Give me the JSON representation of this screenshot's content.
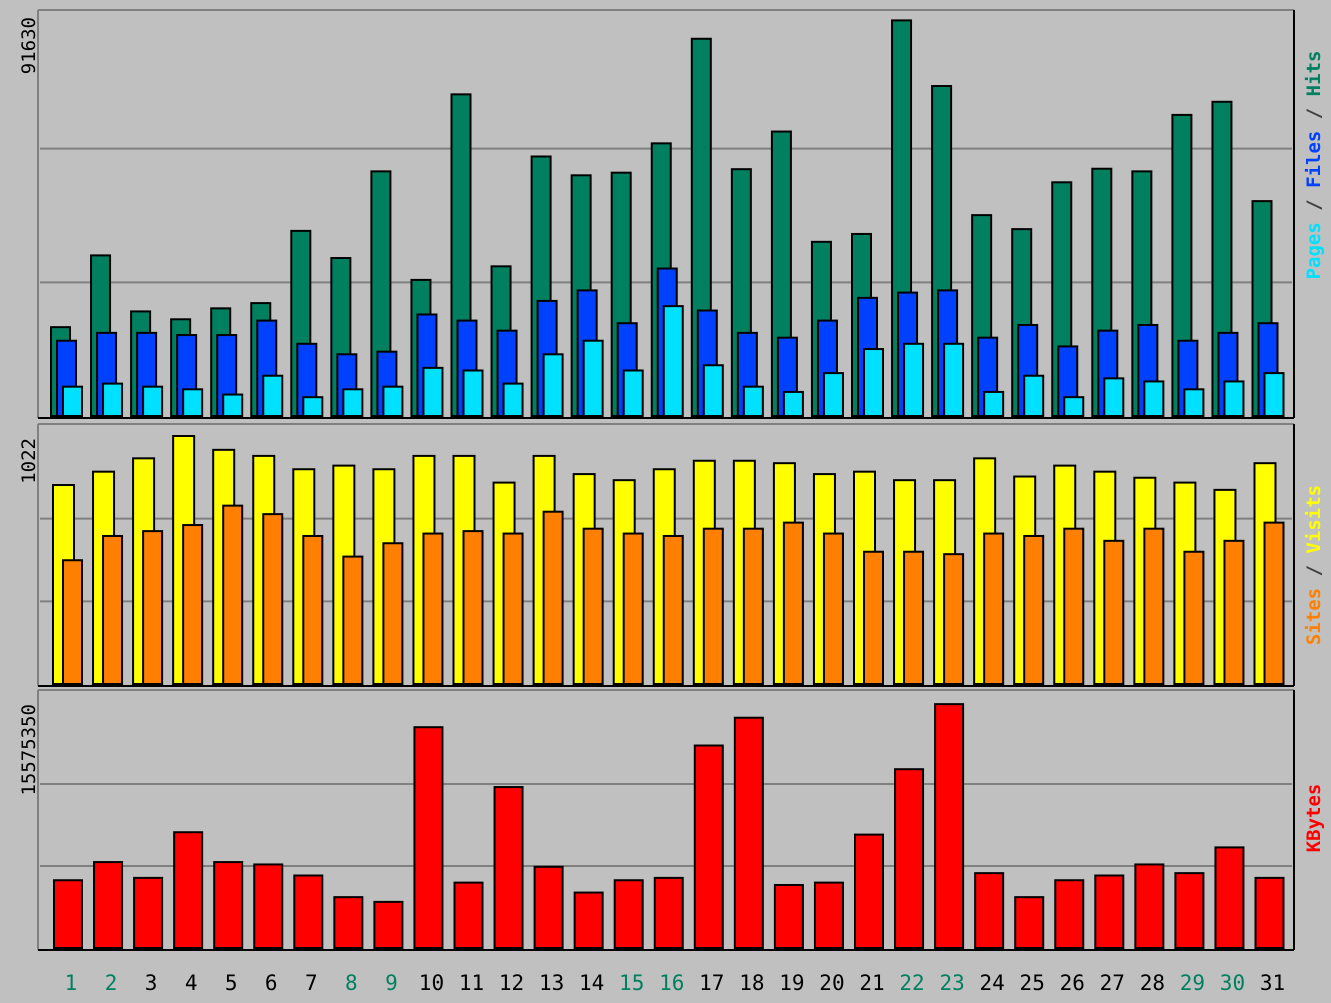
{
  "chart_data": [
    {
      "type": "bar",
      "panel": "pages-files-hits",
      "ymax_label": "91630",
      "ylim": [
        0,
        91630
      ],
      "legend": [
        {
          "text": "Pages",
          "color": "#00e0ff"
        },
        {
          "text": " / ",
          "color": "#404040"
        },
        {
          "text": "Files",
          "color": "#0040ff"
        },
        {
          "text": " / ",
          "color": "#404040"
        },
        {
          "text": "Hits",
          "color": "#00805f"
        }
      ],
      "series": [
        {
          "key": "hits",
          "color": "#00805f",
          "values": [
            20300,
            36700,
            23900,
            22100,
            24600,
            25800,
            42300,
            36100,
            55900,
            31100,
            73500,
            34200,
            59300,
            55000,
            55600,
            62300,
            86200,
            56400,
            65000,
            39800,
            41600,
            90400,
            75400,
            45900,
            42700,
            53400,
            56500,
            55900,
            68800,
            71800,
            49100
          ]
        },
        {
          "key": "files",
          "color": "#0040ff",
          "values": [
            17200,
            19000,
            19000,
            18500,
            18500,
            21800,
            16500,
            14100,
            14700,
            23200,
            21800,
            19500,
            26300,
            28700,
            21200,
            33700,
            24100,
            19000,
            17900,
            21800,
            27000,
            28200,
            28700,
            17900,
            20800,
            15900,
            19500,
            20800,
            17200,
            19000,
            21200
          ]
        },
        {
          "key": "pages",
          "color": "#00e0ff",
          "values": [
            6700,
            7400,
            6700,
            6100,
            4900,
            9200,
            4300,
            6100,
            6700,
            11000,
            10400,
            7400,
            14100,
            17200,
            10400,
            25100,
            11600,
            6700,
            5500,
            9800,
            15300,
            16500,
            16500,
            5500,
            9200,
            4300,
            8600,
            7900,
            6100,
            7900,
            9800
          ]
        }
      ]
    },
    {
      "type": "bar",
      "panel": "sites-visits",
      "ymax_label": "1022",
      "ylim": [
        0,
        1022
      ],
      "legend": [
        {
          "text": "Sites",
          "color": "#ff8000"
        },
        {
          "text": " / ",
          "color": "#404040"
        },
        {
          "text": "Visits",
          "color": "#ffff00"
        }
      ],
      "series": [
        {
          "key": "visits",
          "color": "#ffff00",
          "values": [
            820,
            875,
            930,
            1022,
            965,
            940,
            885,
            900,
            885,
            940,
            940,
            830,
            940,
            865,
            840,
            885,
            920,
            920,
            910,
            865,
            875,
            840,
            840,
            930,
            855,
            900,
            875,
            850,
            830,
            800,
            910
          ]
        },
        {
          "key": "sites",
          "color": "#ff8000",
          "values": [
            510,
            610,
            630,
            655,
            735,
            700,
            610,
            525,
            580,
            620,
            630,
            620,
            710,
            640,
            620,
            610,
            640,
            640,
            665,
            620,
            545,
            545,
            535,
            620,
            610,
            640,
            590,
            640,
            545,
            590,
            665
          ]
        }
      ]
    },
    {
      "type": "bar",
      "panel": "kbytes",
      "ymax_label": "15575350",
      "ylim": [
        0,
        15575350
      ],
      "legend": [
        {
          "text": "KBytes",
          "color": "#ff0000"
        }
      ],
      "series": [
        {
          "key": "kbytes",
          "color": "#ff0000",
          "values": [
            4290000,
            5440000,
            4440000,
            7330000,
            5440000,
            5290000,
            4590000,
            3220000,
            2920000,
            13980000,
            4140000,
            10190000,
            5140000,
            3510000,
            4290000,
            4440000,
            12820000,
            14580000,
            3990000,
            4140000,
            7180000,
            11320000,
            15440000,
            4740000,
            3220000,
            4290000,
            4590000,
            5290000,
            4740000,
            6370000,
            4440000
          ]
        }
      ]
    }
  ],
  "x_axis": {
    "days": [
      "1",
      "2",
      "3",
      "4",
      "5",
      "6",
      "7",
      "8",
      "9",
      "10",
      "11",
      "12",
      "13",
      "14",
      "15",
      "16",
      "17",
      "18",
      "19",
      "20",
      "21",
      "22",
      "23",
      "24",
      "25",
      "26",
      "27",
      "28",
      "29",
      "30",
      "31"
    ],
    "weekend_days": [
      "1",
      "2",
      "8",
      "9",
      "15",
      "16",
      "22",
      "23",
      "29",
      "30"
    ],
    "weekday_color": "#000000",
    "weekend_color": "#00805f"
  }
}
